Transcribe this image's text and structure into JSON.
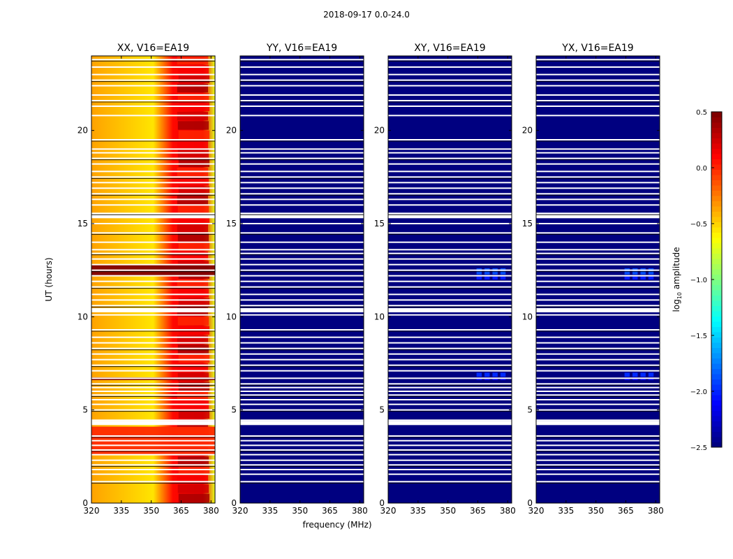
{
  "suptitle": "2018-09-17 0.0-24.0",
  "chart_data": {
    "type": "heatmap",
    "title": "2018-09-17 0.0-24.0",
    "xlabel": "frequency (MHz)",
    "ylabel": "UT (hours)",
    "xlim": [
      320,
      382
    ],
    "ylim": [
      0,
      24
    ],
    "xticks": [
      320,
      335,
      350,
      365,
      380
    ],
    "yticks": [
      0,
      5,
      10,
      15,
      20
    ],
    "colorbar": {
      "label_prefix": "log",
      "label_sub": "10",
      "label_suffix": " amplitude",
      "range": [
        -2.5,
        0.5
      ],
      "ticks": [
        0.5,
        0.0,
        -0.5,
        -1.0,
        -1.5,
        -2.0,
        -2.5
      ],
      "tick_labels": [
        "0.5",
        "0.0",
        "−0.5",
        "−1.0",
        "−1.5",
        "−2.0",
        "−2.5"
      ]
    },
    "flagged_ut_hours": [
      1.15,
      1.55,
      1.8,
      2.05,
      2.3,
      2.6,
      2.85,
      3.1,
      3.35,
      3.6,
      4.3,
      4.45,
      5.0,
      5.3,
      5.55,
      5.8,
      6.0,
      6.2,
      6.4,
      6.7,
      7.1,
      7.4,
      7.7,
      8.0,
      8.3,
      8.6,
      8.9,
      9.3,
      10.1,
      10.35,
      10.6,
      10.9,
      11.2,
      11.6,
      11.9,
      12.2,
      12.5,
      12.8,
      13.1,
      13.4,
      13.6,
      14.0,
      14.5,
      15.0,
      15.4,
      15.55,
      16.0,
      16.3,
      16.6,
      16.9,
      17.2,
      17.5,
      17.8,
      18.2,
      18.5,
      18.8,
      19.0,
      19.5,
      20.8,
      21.3,
      21.6,
      21.9,
      22.4,
      22.7,
      23.0,
      23.4,
      23.8
    ],
    "panels": [
      {
        "name": "XX",
        "title": "XX, V16=EA19",
        "base_log_amp": -0.4,
        "features": [
          {
            "desc": "higher amplitude in band",
            "freq_range": [
              363,
              382
            ],
            "log_amp": 0.2
          },
          {
            "desc": "strong broadband row",
            "ut_range": [
              12.2,
              12.8
            ],
            "log_amp": 0.5
          },
          {
            "desc": "strong broadband row",
            "ut_range": [
              6.6,
              6.75
            ],
            "log_amp": 0.5
          },
          {
            "desc": "elevated broadband block",
            "ut_range": [
              2.6,
              4.1
            ],
            "log_amp": 0.0
          }
        ]
      },
      {
        "name": "YY",
        "title": "YY, V16=EA19",
        "base_log_amp": -2.5,
        "features": []
      },
      {
        "name": "XY",
        "title": "XY, V16=EA19",
        "base_log_amp": -2.5,
        "features": [
          {
            "desc": "weak patches",
            "freq_range": [
              364,
              380
            ],
            "ut_range": [
              12.0,
              12.6
            ],
            "log_amp": -1.9
          },
          {
            "desc": "weak patches",
            "freq_range": [
              364,
              380
            ],
            "ut_range": [
              6.6,
              7.0
            ],
            "log_amp": -2.0
          }
        ]
      },
      {
        "name": "YX",
        "title": "YX, V16=EA19",
        "base_log_amp": -2.5,
        "features": [
          {
            "desc": "weak patches",
            "freq_range": [
              364,
              380
            ],
            "ut_range": [
              12.0,
              12.6
            ],
            "log_amp": -1.9
          },
          {
            "desc": "weak patches",
            "freq_range": [
              364,
              380
            ],
            "ut_range": [
              6.6,
              7.0
            ],
            "log_amp": -2.0
          }
        ]
      }
    ]
  }
}
